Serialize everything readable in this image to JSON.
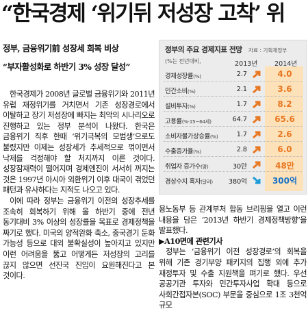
{
  "headline": "“한국경제 ‘위기뒤 저성장 고착’ 위",
  "subheads": [
    "정부, 금융위기前 성장세 회복 비상",
    "“부자활성화로 하반기 3% 성장 달성”"
  ],
  "body_left": [
    "한국경제가 2008년 글로벌 금융위기와 2011년 유럽 재정위기를 거치면서 기존 성장경로에서 이탈하고 장기 저성장에 빠지는 최악의 시나리오로 진행하고 있는 정부 분석이 나왔다. 한국은 금융위기 직후 한때 ‘위기극복의 모범생’으로도 불렸지만 이제는 성장세가 추세적으로 꺾이면서 낙제를 걱정해야 할 처지까지 이른 것이다. 성장잠재력이 떨어지며 경제엔진이 서서히 꺼지는 것은 1997년 아시아 외환위기 이후 대국이 겪었던 패턴과 유사하다는 지적도 나오고 있다.",
    "이에 따라 정부는 금융위기 이전의 성장추세를 조속히 회복하기 위해 올 하반기 중에 전년 동기대비 3% 이상의 성장률을 목표로 경제정책을 짜기로 했다. 미국의 양적완화 축소, 중국경기 둔화 가능성 등으로 대외 불확실성이 높아지고 있지만 이런 어려움을 뚫고 어떻게든 저성장의 고리를 끊지 않으면 선진국 진입이 요원해진다고 본 것이다."
  ],
  "body_right": "용노동부 등 관계부처 합동 브리핑을 열고 이런 내용을 담은 ‘2013년 하반기 경제정책방향’을 발표했다.",
  "ref_line": "▶A10면에 관련기사",
  "body_right2": "정부는 ‘금융위기 이전 성장경로’의 회복을 위해 기존 경기부양 패키지의 집행 외에 추가 재정투자 및 수출 지원책을 펴기로 했다. 우선 공공기관 투자와 민간투자사업 확대 등으로 사회간접자본(SOC) 부문을 중심으로 1조 3천억 규모",
  "table": {
    "title": "정부의 주요 경제지표 전망",
    "source": "자료 : 기획재정부",
    "note": "(%는 전년대비,",
    "years": [
      "2013년",
      "2014년"
    ],
    "rows": [
      {
        "label": "경제성장률",
        "unit": "(%)",
        "v2013": "2.7",
        "v2014": "4.0",
        "dir": "up"
      },
      {
        "label": "민간소비",
        "unit": "(%)",
        "v2013": "2.1",
        "v2014": "3.6",
        "dir": "up"
      },
      {
        "label": "설비투자",
        "unit": "(%)",
        "v2013": "1.7",
        "v2014": "8.2",
        "dir": "up"
      },
      {
        "label": "고용률",
        "unit": "(%·15~64세)",
        "v2013": "64.7",
        "v2014": "65.6",
        "dir": "up"
      },
      {
        "label": "소비자물가상승률",
        "unit": "(%)",
        "v2013": "1.7",
        "v2014": "2.6",
        "dir": "up"
      },
      {
        "label": "수출증가율",
        "unit": "(%)",
        "v2013": "2.8",
        "v2014": "6.0",
        "dir": "up"
      },
      {
        "label": "취업자 증가수",
        "unit": "(명)",
        "v2013": "30만",
        "v2014": "48만",
        "dir": "up"
      },
      {
        "label": "경상수지 흑자",
        "unit": "(달러)",
        "v2013": "380억",
        "v2014": "300억",
        "dir": "down"
      }
    ]
  },
  "colors": {
    "up_arrow": "#e87722",
    "down_arrow": "#1a9bd7",
    "highlight": "#fde1b8"
  }
}
